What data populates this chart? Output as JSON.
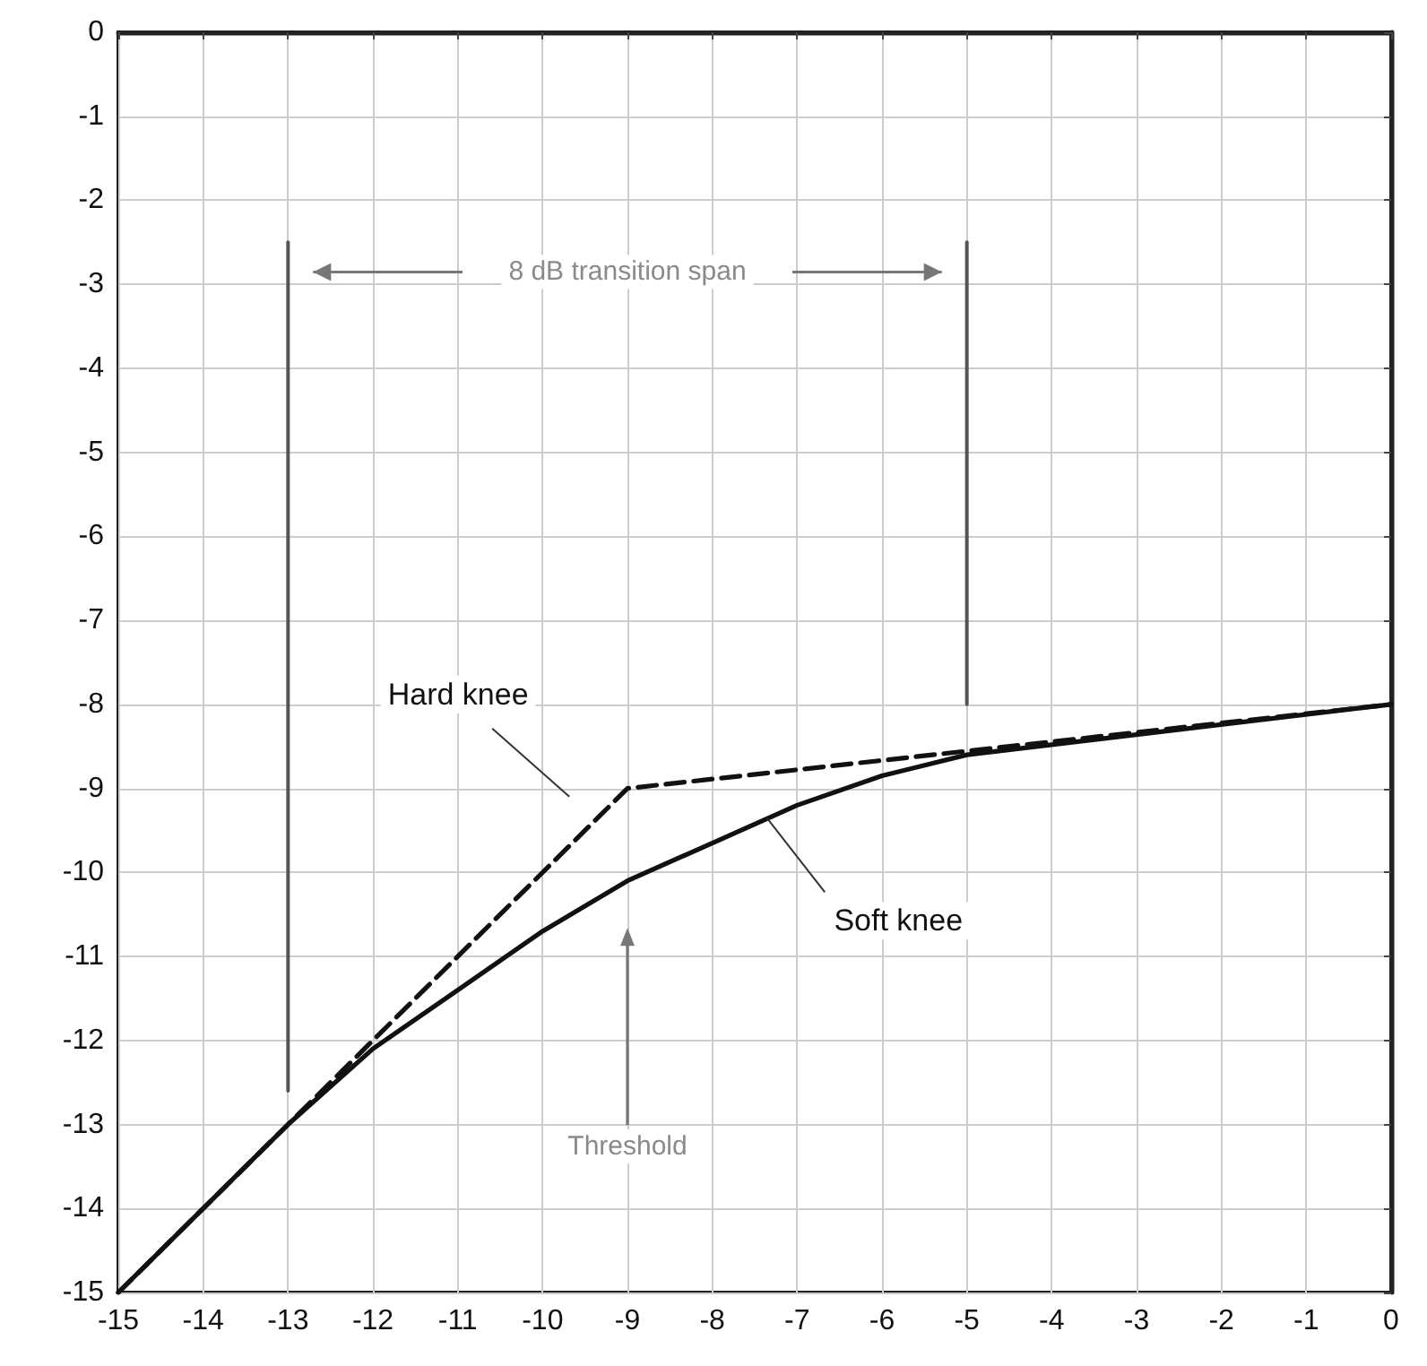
{
  "chart_data": {
    "type": "line",
    "xlim": [
      -15,
      0
    ],
    "ylim": [
      -15,
      0
    ],
    "xticks": [
      -15,
      -14,
      -13,
      -12,
      -11,
      -10,
      -9,
      -8,
      -7,
      -6,
      -5,
      -4,
      -3,
      -2,
      -1,
      0
    ],
    "yticks": [
      -15,
      -14,
      -13,
      -12,
      -11,
      -10,
      -9,
      -8,
      -7,
      -6,
      -5,
      -4,
      -3,
      -2,
      -1,
      0
    ],
    "grid": true,
    "series": [
      {
        "color": "#111111",
        "line_style": "dashed",
        "x": [
          -15,
          -9,
          0
        ],
        "values": [
          -15,
          -9,
          -8
        ]
      },
      {
        "color": "#111111",
        "line_style": "solid",
        "x": [
          -15,
          -13,
          -12,
          -11,
          -10,
          -9,
          -8,
          -7,
          -6,
          -5,
          0
        ],
        "values": [
          -15,
          -13,
          -12.1,
          -11.4,
          -10.7,
          -10.1,
          -9.65,
          -9.2,
          -8.85,
          -8.6,
          -8
        ]
      },
      {
        "color": "#555555",
        "line_style": "solid",
        "x": [
          -13,
          -13
        ],
        "values": [
          -2.5,
          -12.6
        ]
      },
      {
        "color": "#555555",
        "line_style": "solid",
        "x": [
          -5,
          -5
        ],
        "values": [
          -2.5,
          -8
        ]
      }
    ],
    "annotations": [
      "8 dB transition span",
      "Hard knee",
      {
        "text": "Soft knee",
        "x": -7.35,
        "y": -9.36
      },
      "Threshold"
    ]
  }
}
